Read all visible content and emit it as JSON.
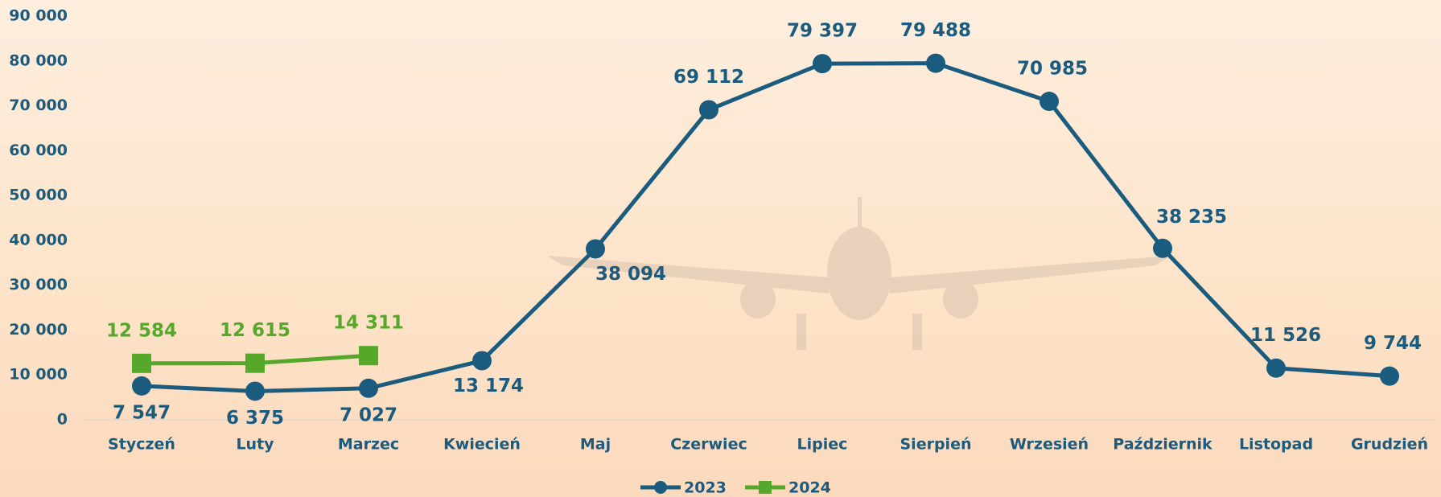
{
  "chart_data": {
    "type": "line",
    "categories": [
      "Styczeń",
      "Luty",
      "Marzec",
      "Kwiecień",
      "Maj",
      "Czerwiec",
      "Lipiec",
      "Sierpień",
      "Wrzesień",
      "Październik",
      "Listopad",
      "Grudzień"
    ],
    "series": [
      {
        "name": "2023",
        "color": "#1b5c7e",
        "values": [
          7547,
          6375,
          7027,
          13174,
          38094,
          69112,
          79397,
          79488,
          70985,
          38235,
          11526,
          9744
        ],
        "value_labels": [
          "7 547",
          "6 375",
          "7 027",
          "13 174",
          "38 094",
          "69 112",
          "79 397",
          "79 488",
          "70 985",
          "38 235",
          "11 526",
          "9 744"
        ]
      },
      {
        "name": "2024",
        "color": "#56a82a",
        "values": [
          12584,
          12615,
          14311,
          null,
          null,
          null,
          null,
          null,
          null,
          null,
          null,
          null
        ],
        "value_labels": [
          "12 584",
          "12 615",
          "14 311",
          null,
          null,
          null,
          null,
          null,
          null,
          null,
          null,
          null
        ]
      }
    ],
    "ylim": [
      0,
      90000
    ],
    "yticks": [
      0,
      {
        "value": 10000,
        "label": "10 000"
      },
      {
        "value": 20000,
        "label": "20 000"
      },
      {
        "value": 30000,
        "label": "30 000"
      },
      {
        "value": 40000,
        "label": "40 000"
      },
      {
        "value": 50000,
        "label": "50 000"
      },
      {
        "value": 60000,
        "label": "60 000"
      },
      {
        "value": 70000,
        "label": "70 000"
      },
      {
        "value": 80000,
        "label": "80 000"
      },
      {
        "value": 90000,
        "label": "90 000"
      }
    ],
    "legend": "bottom"
  }
}
